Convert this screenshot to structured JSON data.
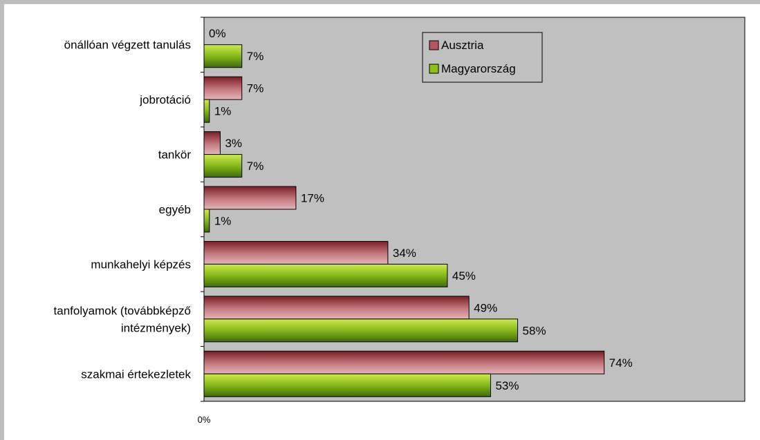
{
  "chart_data": {
    "type": "bar",
    "orientation": "horizontal",
    "categories": [
      "önállóan végzett tanulás",
      "jobrotáció",
      "tankör",
      "egyéb",
      "munkahelyi képzés",
      "tanfolyamok (továbbképző intézmények)",
      "szakmai értekezletek"
    ],
    "category_lines": [
      [
        "önállóan végzett tanulás"
      ],
      [
        "jobrotáció"
      ],
      [
        "tankör"
      ],
      [
        "egyéb"
      ],
      [
        "munkahelyi képzés"
      ],
      [
        "tanfolyamok (továbbképző",
        "intézmények)"
      ],
      [
        "szakmai értekezletek"
      ]
    ],
    "series": [
      {
        "name": "Ausztria",
        "values": [
          0,
          7,
          3,
          17,
          34,
          49,
          74
        ],
        "labels": [
          "0%",
          "7%",
          "3%",
          "17%",
          "34%",
          "49%",
          "74%"
        ],
        "color": "#b5565f"
      },
      {
        "name": "Magyarország",
        "values": [
          7,
          1,
          7,
          1,
          45,
          58,
          53
        ],
        "labels": [
          "7%",
          "1%",
          "7%",
          "1%",
          "45%",
          "58%",
          "53%"
        ],
        "color": "#8fc01a"
      }
    ],
    "xlim": [
      0,
      100
    ],
    "x_tick_label": "0%",
    "legend_position": "top-right",
    "plot_background": "#c0c0c0",
    "grid": false
  }
}
